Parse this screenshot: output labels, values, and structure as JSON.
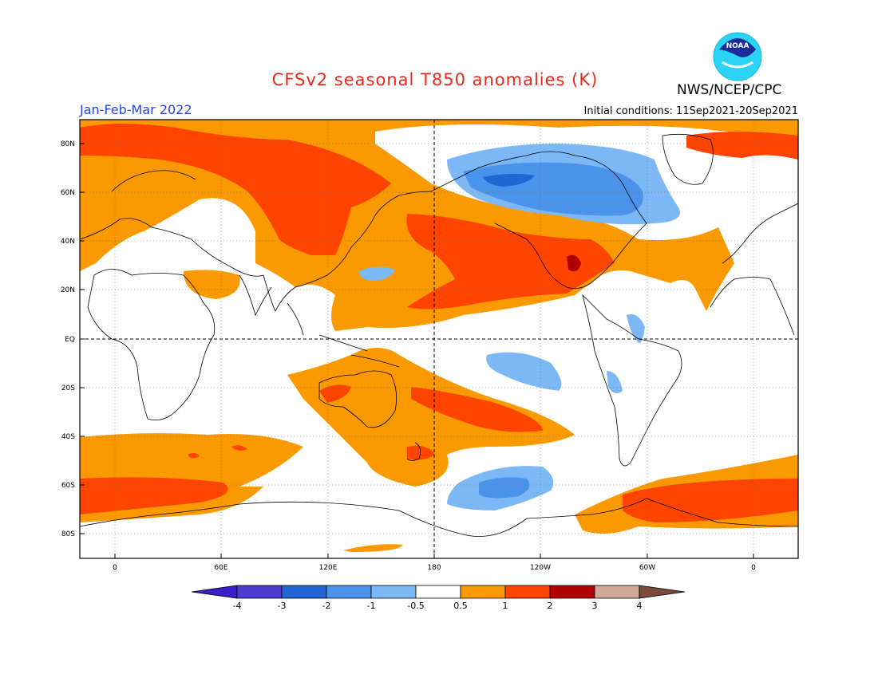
{
  "header": {
    "title": "CFSv2 seasonal T850 anomalies (K)",
    "agency": "NWS/NCEP/CPC",
    "period": "Jan-Feb-Mar 2022",
    "initial_conditions": "Initial conditions: 11Sep2021-20Sep2021",
    "logo_text": "NOAA"
  },
  "axes": {
    "lat_labels": [
      "80N",
      "60N",
      "40N",
      "20N",
      "EQ",
      "20S",
      "40S",
      "60S",
      "80S"
    ],
    "lon_labels": [
      "0",
      "60E",
      "120E",
      "180",
      "120W",
      "60W",
      "0"
    ]
  },
  "colorbar": {
    "labels": [
      "-4",
      "-3",
      "-2",
      "-1",
      "-0.5",
      "0.5",
      "1",
      "2",
      "3",
      "4"
    ],
    "colors": [
      "#3a1ec8",
      "#4b3ccd",
      "#2266d4",
      "#4a92ea",
      "#7cb8f5",
      "#ffffff",
      "#fa9a00",
      "#ff4400",
      "#b00000",
      "#d2a996",
      "#7a4b3a"
    ]
  }
}
